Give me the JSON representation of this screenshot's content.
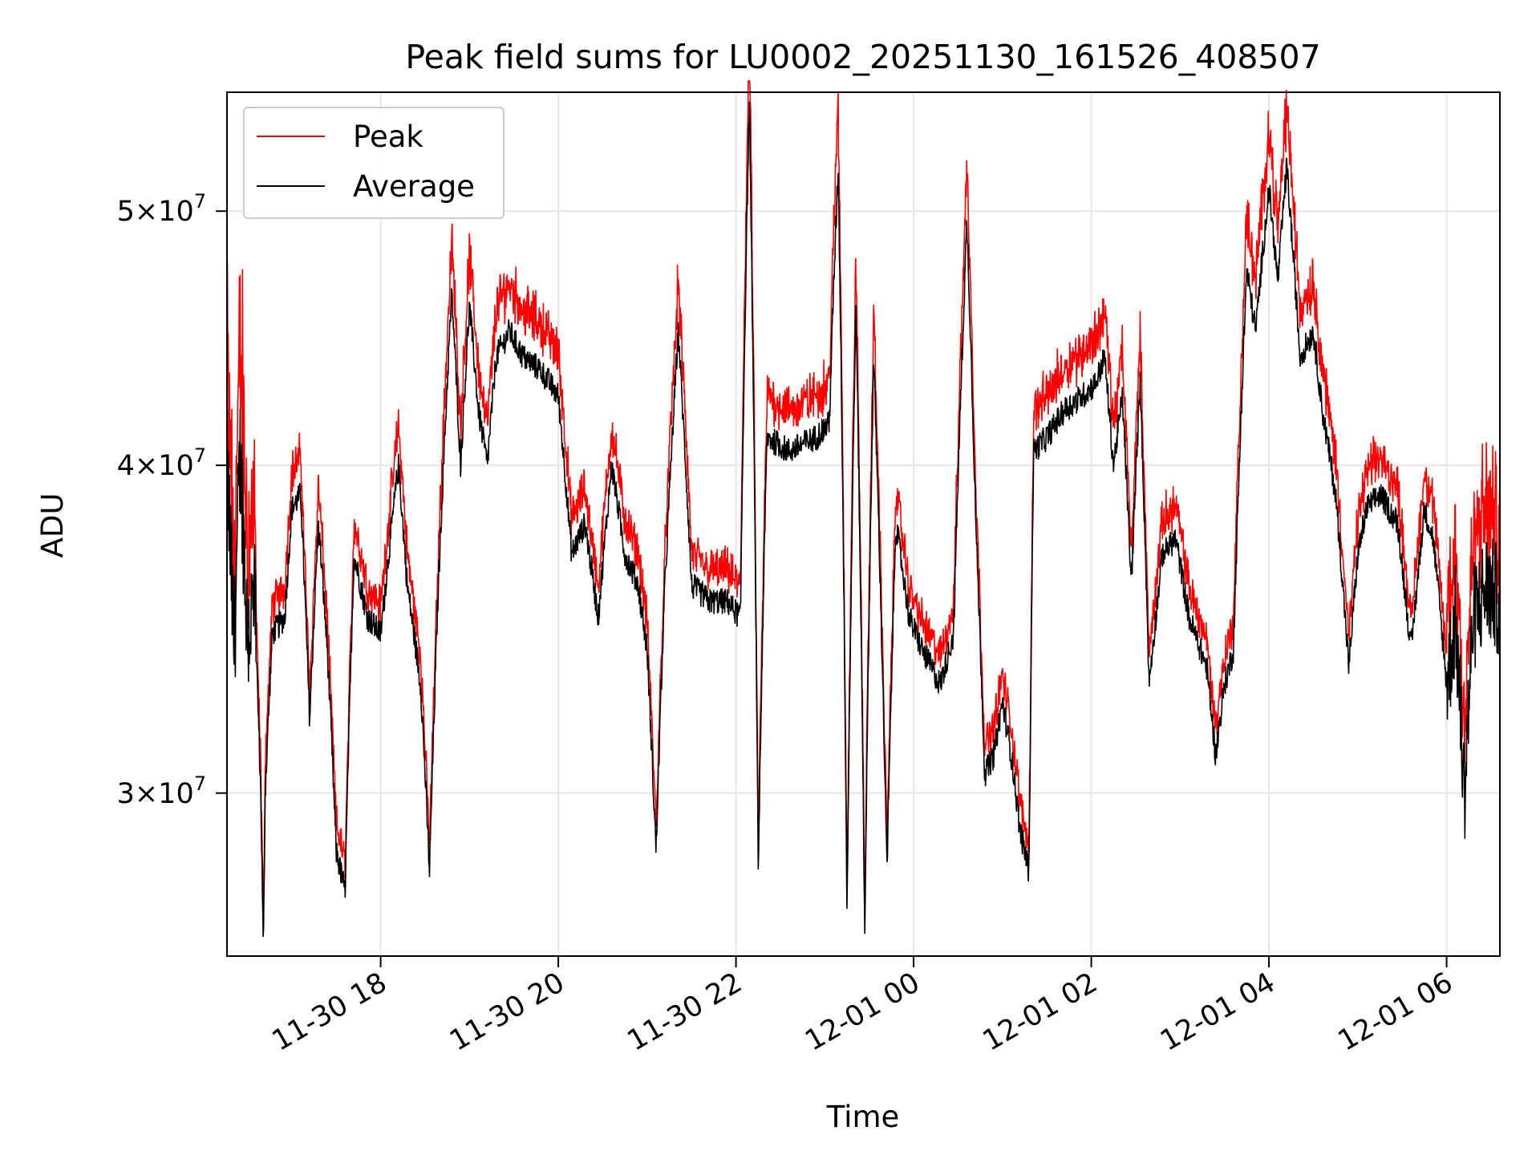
{
  "chart_data": {
    "type": "line",
    "title": "Peak field sums for LU0002_20251130_161526_408507",
    "xlabel": "Time",
    "ylabel": "ADU",
    "yscale": "log",
    "grid": true,
    "legend_position": "upper-left",
    "x_unit": "hours since 2025-11-30 00:00",
    "xlim": [
      16.27,
      30.6
    ],
    "ylim": [
      26000000,
      55500000
    ],
    "x_ticks": [
      {
        "value": 18,
        "label": "11-30 18"
      },
      {
        "value": 20,
        "label": "11-30 20"
      },
      {
        "value": 22,
        "label": "11-30 22"
      },
      {
        "value": 24,
        "label": "12-01 00"
      },
      {
        "value": 26,
        "label": "12-01 02"
      },
      {
        "value": 28,
        "label": "12-01 04"
      },
      {
        "value": 30,
        "label": "12-01 06"
      }
    ],
    "y_ticks": [
      {
        "value": 30000000,
        "base": "3",
        "exp": "7"
      },
      {
        "value": 40000000,
        "base": "4",
        "exp": "7"
      },
      {
        "value": 50000000,
        "base": "5",
        "exp": "7"
      }
    ],
    "series": [
      {
        "name": "Peak",
        "color": "#ff0000"
      },
      {
        "name": "Average",
        "color": "#000000"
      }
    ],
    "average_profile": [
      [
        16.27,
        40000000
      ],
      [
        16.35,
        34000000
      ],
      [
        16.42,
        40500000
      ],
      [
        16.5,
        34500000
      ],
      [
        16.58,
        35500000
      ],
      [
        16.65,
        30000000
      ],
      [
        16.68,
        26000000
      ],
      [
        16.7,
        30000000
      ],
      [
        16.78,
        34500000
      ],
      [
        16.92,
        35000000
      ],
      [
        17.0,
        38500000
      ],
      [
        17.1,
        39000000
      ],
      [
        17.2,
        32000000
      ],
      [
        17.3,
        38000000
      ],
      [
        17.4,
        34000000
      ],
      [
        17.5,
        28500000
      ],
      [
        17.6,
        27500000
      ],
      [
        17.7,
        37000000
      ],
      [
        17.85,
        35000000
      ],
      [
        18.0,
        34500000
      ],
      [
        18.2,
        40000000
      ],
      [
        18.3,
        36000000
      ],
      [
        18.45,
        33000000
      ],
      [
        18.55,
        28000000
      ],
      [
        18.65,
        36000000
      ],
      [
        18.8,
        46500000
      ],
      [
        18.9,
        40000000
      ],
      [
        19.0,
        46000000
      ],
      [
        19.1,
        42000000
      ],
      [
        19.2,
        40000000
      ],
      [
        19.3,
        44000000
      ],
      [
        19.45,
        45000000
      ],
      [
        19.6,
        44000000
      ],
      [
        19.8,
        43500000
      ],
      [
        20.0,
        42500000
      ],
      [
        20.15,
        37000000
      ],
      [
        20.3,
        38000000
      ],
      [
        20.45,
        35000000
      ],
      [
        20.6,
        40000000
      ],
      [
        20.75,
        37000000
      ],
      [
        20.9,
        36000000
      ],
      [
        21.0,
        34000000
      ],
      [
        21.1,
        28500000
      ],
      [
        21.2,
        36000000
      ],
      [
        21.35,
        45000000
      ],
      [
        21.5,
        36000000
      ],
      [
        21.7,
        35500000
      ],
      [
        21.9,
        35500000
      ],
      [
        22.05,
        35000000
      ],
      [
        22.15,
        55000000
      ],
      [
        22.25,
        28000000
      ],
      [
        22.35,
        41000000
      ],
      [
        22.6,
        40500000
      ],
      [
        22.9,
        41000000
      ],
      [
        23.05,
        41500000
      ],
      [
        23.15,
        52000000
      ],
      [
        23.25,
        27000000
      ],
      [
        23.35,
        46000000
      ],
      [
        23.45,
        26500000
      ],
      [
        23.55,
        44000000
      ],
      [
        23.7,
        28000000
      ],
      [
        23.8,
        38000000
      ],
      [
        23.95,
        35000000
      ],
      [
        24.1,
        34000000
      ],
      [
        24.3,
        33000000
      ],
      [
        24.45,
        34500000
      ],
      [
        24.6,
        49500000
      ],
      [
        24.7,
        38000000
      ],
      [
        24.8,
        30500000
      ],
      [
        24.9,
        31000000
      ],
      [
        25.0,
        32500000
      ],
      [
        25.1,
        31000000
      ],
      [
        25.2,
        29000000
      ],
      [
        25.3,
        28000000
      ],
      [
        25.35,
        40500000
      ],
      [
        25.5,
        41000000
      ],
      [
        25.7,
        42000000
      ],
      [
        25.9,
        42500000
      ],
      [
        26.05,
        43000000
      ],
      [
        26.15,
        44000000
      ],
      [
        26.25,
        40000000
      ],
      [
        26.35,
        42500000
      ],
      [
        26.45,
        36000000
      ],
      [
        26.55,
        43000000
      ],
      [
        26.65,
        33000000
      ],
      [
        26.8,
        37000000
      ],
      [
        26.95,
        37500000
      ],
      [
        27.1,
        35000000
      ],
      [
        27.3,
        33500000
      ],
      [
        27.4,
        31000000
      ],
      [
        27.5,
        33000000
      ],
      [
        27.6,
        34000000
      ],
      [
        27.75,
        47500000
      ],
      [
        27.85,
        45000000
      ],
      [
        28.0,
        51000000
      ],
      [
        28.1,
        47000000
      ],
      [
        28.2,
        52000000
      ],
      [
        28.35,
        44000000
      ],
      [
        28.5,
        45000000
      ],
      [
        28.6,
        42000000
      ],
      [
        28.75,
        39000000
      ],
      [
        28.9,
        33500000
      ],
      [
        29.0,
        37000000
      ],
      [
        29.1,
        38500000
      ],
      [
        29.25,
        39000000
      ],
      [
        29.45,
        38000000
      ],
      [
        29.6,
        34000000
      ],
      [
        29.75,
        38500000
      ],
      [
        29.85,
        37500000
      ],
      [
        30.0,
        33000000
      ],
      [
        30.1,
        35000000
      ],
      [
        30.2,
        30000000
      ],
      [
        30.3,
        35000000
      ],
      [
        30.45,
        36000000
      ],
      [
        30.6,
        35500000
      ]
    ]
  }
}
